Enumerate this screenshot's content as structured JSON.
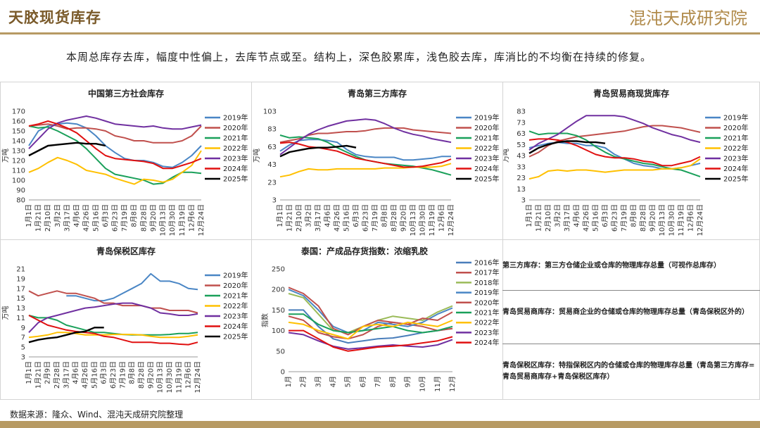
{
  "header": {
    "title": "天胶现货库存",
    "brand": "混沌天成研究院"
  },
  "summary": "本周总库存去库，幅度中性偏上，去库节点或至。结构上，深色胶累库，浅色胶去库，库消比的不均衡在持续的修复。",
  "source": "数据来源：隆众、Wind、混沌天成研究院整理",
  "notes": [
    "第三方库存：第三方仓储企业或仓库的物理库存总量（可视作总库存）",
    "青岛贸易商库存：贸易商企业的仓储或仓库的物理库存总量（青岛保税区外的）",
    "青岛保税区库存：特指保税区内的仓储或仓库的物理库存总量（青岛第三方库存=青岛贸易商库存+青岛保税区库存）"
  ],
  "colors": {
    "2016年": "#4a7ebb",
    "2017年": "#c0504d",
    "2018年": "#9bbb59",
    "2019年": "#4a86c5",
    "2020年": "#c0504d",
    "2021年": "#1aa05a",
    "2022年": "#ffc000",
    "2023年": "#7030a0",
    "2024年": "#e01010",
    "2025年": "#000000"
  },
  "chart_data": [
    {
      "type": "line",
      "title": "中国第三方社会库存",
      "ylabel": "万吨",
      "yticks": [
        80,
        90,
        100,
        110,
        120,
        130,
        140,
        150,
        160,
        170
      ],
      "ylim": [
        80,
        170
      ],
      "xticks": [
        "1月1日",
        "1月21日",
        "2月10日",
        "3月2日",
        "3月17日",
        "4月6日",
        "4月26日",
        "5月16日",
        "6月3日",
        "6月23日",
        "7月19日",
        "8月8日",
        "8月28日",
        "9月20日",
        "10月13日",
        "10月30日",
        "11月19日",
        "12月6日",
        "12月24日"
      ],
      "series": [
        {
          "name": "2019年",
          "values": [
            135,
            150,
            155,
            157,
            158,
            157,
            153,
            145,
            135,
            128,
            122,
            120,
            120,
            118,
            114,
            113,
            118,
            125,
            135
          ]
        },
        {
          "name": "2020年",
          "values": [
            155,
            156,
            157,
            155,
            152,
            153,
            153,
            152,
            150,
            145,
            143,
            140,
            140,
            138,
            138,
            138,
            140,
            145,
            155
          ]
        },
        {
          "name": "2021年",
          "values": [
            155,
            153,
            154,
            150,
            145,
            140,
            132,
            122,
            112,
            106,
            104,
            102,
            100,
            96,
            97,
            103,
            108,
            108,
            107
          ]
        },
        {
          "name": "2022年",
          "values": [
            108,
            112,
            118,
            123,
            120,
            116,
            110,
            108,
            106,
            102,
            99,
            96,
            101,
            100,
            98,
            101,
            108,
            115,
            130
          ]
        },
        {
          "name": "2023年",
          "values": [
            132,
            142,
            152,
            158,
            161,
            163,
            165,
            163,
            160,
            157,
            156,
            155,
            154,
            155,
            153,
            152,
            152,
            154,
            156
          ]
        },
        {
          "name": "2024年",
          "values": [
            155,
            157,
            160,
            157,
            153,
            148,
            140,
            132,
            125,
            122,
            121,
            120,
            119,
            117,
            112,
            112,
            115,
            118,
            122
          ]
        },
        {
          "name": "2025年",
          "values": [
            125,
            130,
            135,
            136,
            137,
            138,
            137,
            137,
            135
          ]
        }
      ]
    },
    {
      "type": "line",
      "title": "青岛第三方库存",
      "ylabel": "万吨",
      "yticks": [
        3,
        23,
        43,
        63,
        83,
        103
      ],
      "ylim": [
        3,
        103
      ],
      "xticks": [
        "1月1日",
        "1月21日",
        "2月10日",
        "3月2日",
        "3月17日",
        "4月6日",
        "4月26日",
        "5月16日",
        "6月3日",
        "6月23日",
        "7月19日",
        "8月8日",
        "8月28日",
        "9月20日",
        "10月13日",
        "10月30日",
        "11月19日",
        "12月6日",
        "12月24日"
      ],
      "series": [
        {
          "name": "2019年",
          "values": [
            58,
            65,
            70,
            71,
            71,
            70,
            68,
            60,
            54,
            52,
            51,
            51,
            51,
            48,
            48,
            49,
            50,
            52,
            52
          ]
        },
        {
          "name": "2020年",
          "values": [
            68,
            70,
            72,
            76,
            78,
            78,
            79,
            80,
            80,
            81,
            83,
            84,
            84,
            84,
            82,
            81,
            80,
            79,
            78
          ]
        },
        {
          "name": "2021年",
          "values": [
            76,
            73,
            74,
            73,
            72,
            68,
            62,
            57,
            52,
            48,
            46,
            44,
            43,
            42,
            41,
            39,
            37,
            34,
            31
          ]
        },
        {
          "name": "2022年",
          "values": [
            29,
            31,
            35,
            38,
            37,
            37,
            38,
            38,
            38,
            38,
            38,
            39,
            39,
            39,
            40,
            40,
            40,
            41,
            44
          ]
        },
        {
          "name": "2023年",
          "values": [
            54,
            62,
            70,
            77,
            82,
            86,
            89,
            92,
            93,
            94,
            93,
            89,
            84,
            80,
            77,
            75,
            72,
            70,
            68
          ]
        },
        {
          "name": "2024年",
          "values": [
            67,
            68,
            66,
            63,
            62,
            60,
            58,
            54,
            50,
            48,
            46,
            44,
            42,
            40,
            40,
            41,
            43,
            45,
            49
          ]
        },
        {
          "name": "2025年",
          "values": [
            52,
            57,
            59,
            61,
            62,
            62,
            63,
            64,
            62
          ]
        }
      ]
    },
    {
      "type": "line",
      "title": "青岛贸易商现货库存",
      "ylabel": "万吨",
      "yticks": [
        3,
        13,
        23,
        33,
        43,
        53,
        63,
        73,
        83
      ],
      "ylim": [
        3,
        83
      ],
      "xticks": [
        "1月1日",
        "1月21日",
        "2月10日",
        "3月2日",
        "3月17日",
        "4月6日",
        "4月26日",
        "5月16日",
        "6月3日",
        "6月23日",
        "7月19日",
        "8月8日",
        "8月28日",
        "9月20日",
        "10月13日",
        "10月30日",
        "11月19日",
        "12月6日",
        "12月24日"
      ],
      "series": [
        {
          "name": "2019年",
          "values": [
            50,
            52,
            54,
            55,
            54,
            54,
            52,
            52,
            50,
            44,
            40,
            36,
            34,
            33,
            31,
            31,
            32,
            34,
            36
          ]
        },
        {
          "name": "2020年",
          "values": [
            42,
            46,
            52,
            56,
            58,
            60,
            61,
            62,
            63,
            64,
            65,
            67,
            69,
            70,
            70,
            69,
            68,
            66,
            64
          ]
        },
        {
          "name": "2021年",
          "values": [
            65,
            62,
            63,
            63,
            63,
            61,
            57,
            51,
            46,
            42,
            40,
            38,
            36,
            35,
            33,
            31,
            30,
            27,
            24
          ]
        },
        {
          "name": "2022年",
          "values": [
            22,
            24,
            29,
            30,
            29,
            30,
            30,
            29,
            28,
            29,
            30,
            30,
            30,
            30,
            31,
            31,
            32,
            34,
            40
          ]
        },
        {
          "name": "2023年",
          "values": [
            48,
            54,
            58,
            62,
            68,
            74,
            79,
            79,
            79,
            79,
            78,
            75,
            72,
            68,
            65,
            62,
            60,
            57,
            55
          ]
        },
        {
          "name": "2024年",
          "values": [
            57,
            58,
            58,
            57,
            55,
            52,
            48,
            44,
            42,
            41,
            41,
            40,
            38,
            37,
            34,
            34,
            36,
            38,
            42
          ]
        },
        {
          "name": "2025年",
          "values": [
            45,
            50,
            53,
            55,
            56,
            56,
            55,
            55,
            54
          ]
        }
      ]
    },
    {
      "type": "line",
      "title": "青岛保税区库存",
      "ylabel": "万吨",
      "yticks": [
        3,
        5,
        7,
        9,
        11,
        13,
        15,
        17,
        19,
        21
      ],
      "ylim": [
        3,
        21
      ],
      "xticks": [
        "1月1日",
        "1月21日",
        "2月9日",
        "2月28日",
        "3月17日",
        "4月6日",
        "4月26日",
        "5月16日",
        "6月3日",
        "6月23日",
        "7月19日",
        "8月8日",
        "8月28日",
        "9月20日",
        "10月13日",
        "10月30日",
        "11月19日",
        "12月6日",
        "12月24日"
      ],
      "series": [
        {
          "name": "2019年",
          "values": [
            null,
            null,
            null,
            null,
            15.5,
            15.5,
            15,
            14.5,
            14.5,
            15,
            16,
            17,
            18,
            20,
            18.5,
            18.5,
            18,
            17,
            16.8
          ]
        },
        {
          "name": "2020年",
          "values": [
            16.5,
            15.5,
            16,
            16.5,
            16,
            16,
            15.5,
            15,
            14,
            14,
            13.5,
            13.5,
            13.5,
            13,
            13,
            12.5,
            12.5,
            12.5,
            12
          ]
        },
        {
          "name": "2021年",
          "values": [
            11.5,
            11,
            11,
            10.5,
            9.5,
            9,
            8.5,
            8,
            8,
            7.8,
            7.6,
            7.5,
            7.5,
            7.5,
            7.5,
            7.6,
            7.8,
            7.8,
            8
          ]
        },
        {
          "name": "2022年",
          "values": [
            7,
            7.2,
            7.5,
            8,
            8,
            7.8,
            7.5,
            7.5,
            7.5,
            7.6,
            7.6,
            7.6,
            7.5,
            7.2,
            7,
            7,
            7,
            7.2,
            7.5
          ]
        },
        {
          "name": "2023年",
          "values": [
            8,
            10,
            11,
            11.5,
            12,
            12.5,
            13,
            13.2,
            13.5,
            13.8,
            14,
            14,
            13.5,
            13,
            12,
            11.8,
            11.5,
            11.5,
            11.8
          ]
        },
        {
          "name": "2024年",
          "values": [
            11.5,
            10.5,
            9.5,
            9,
            8.5,
            8.2,
            8,
            7.8,
            7.2,
            7,
            6.5,
            6,
            6,
            6,
            5.8,
            5.8,
            5.6,
            5.5,
            6
          ]
        },
        {
          "name": "2025年",
          "values": [
            6,
            6.5,
            6.8,
            7,
            7.5,
            8,
            8.2,
            9,
            9
          ]
        }
      ]
    },
    {
      "type": "line",
      "title": "泰国：产成品存货指数：浓缩乳胶",
      "ylabel": "指数",
      "yticks": [
        0,
        50,
        100,
        150,
        200,
        250
      ],
      "ylim": [
        0,
        250
      ],
      "xticks": [
        "1月",
        "2月",
        "3月",
        "4月",
        "5月",
        "6月",
        "7月",
        "8月",
        "9月",
        "10月",
        "11月",
        "12月"
      ],
      "series": [
        {
          "name": "2016年",
          "values": [
            150,
            150,
            110,
            80,
            70,
            75,
            80,
            82,
            88,
            95,
            100,
            105
          ]
        },
        {
          "name": "2017年",
          "values": [
            135,
            125,
            95,
            85,
            80,
            90,
            110,
            120,
            115,
            110,
            100,
            105
          ]
        },
        {
          "name": "2018年",
          "values": [
            190,
            180,
            140,
            100,
            95,
            110,
            125,
            135,
            130,
            125,
            145,
            160
          ]
        },
        {
          "name": "2019年",
          "values": [
            200,
            185,
            150,
            110,
            95,
            100,
            120,
            115,
            110,
            120,
            140,
            155
          ]
        },
        {
          "name": "2020年",
          "values": [
            205,
            190,
            160,
            105,
            90,
            110,
            125,
            120,
            115,
            130,
            125,
            145
          ]
        },
        {
          "name": "2021年",
          "values": [
            140,
            140,
            115,
            100,
            95,
            100,
            105,
            110,
            100,
            95,
            100,
            110
          ]
        },
        {
          "name": "2022年",
          "values": [
            120,
            115,
            100,
            90,
            80,
            110,
            115,
            110,
            120,
            115,
            110,
            125
          ]
        },
        {
          "name": "2023年",
          "values": [
            95,
            90,
            75,
            62,
            55,
            58,
            62,
            65,
            62,
            60,
            65,
            78
          ]
        },
        {
          "name": "2024年",
          "values": [
            100,
            100,
            80,
            60,
            50,
            55,
            60,
            62,
            65,
            70,
            75,
            85
          ]
        }
      ]
    }
  ]
}
